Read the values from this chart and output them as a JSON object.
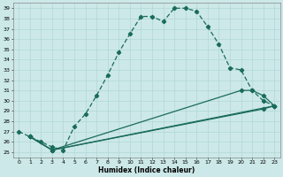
{
  "xlabel": "Humidex (Indice chaleur)",
  "xlim": [
    -0.5,
    23.5
  ],
  "ylim": [
    24.5,
    39.5
  ],
  "yticks": [
    25,
    26,
    27,
    28,
    29,
    30,
    31,
    32,
    33,
    34,
    35,
    36,
    37,
    38,
    39
  ],
  "xticks": [
    0,
    1,
    2,
    3,
    4,
    5,
    6,
    7,
    8,
    9,
    10,
    11,
    12,
    13,
    14,
    15,
    16,
    17,
    18,
    19,
    20,
    21,
    22,
    23
  ],
  "bg_color": "#cce8e8",
  "line_color": "#1a6b5a",
  "grid_color": "#aad4d4",
  "main_curve": {
    "x": [
      0,
      1,
      2,
      3,
      4,
      5,
      6,
      7,
      8,
      9,
      10,
      11,
      12,
      13,
      14,
      15,
      16,
      17,
      18,
      19,
      20,
      21,
      22,
      23
    ],
    "y": [
      27.0,
      26.5,
      26.0,
      25.5,
      25.2,
      27.5,
      28.7,
      30.5,
      32.5,
      34.7,
      36.5,
      38.2,
      38.2,
      37.7,
      39.0,
      39.0,
      38.7,
      37.2,
      35.5,
      33.2,
      33.0,
      31.0,
      30.0,
      29.5
    ]
  },
  "straight_lines": [
    {
      "x": [
        1,
        3,
        23
      ],
      "y": [
        26.5,
        25.2,
        29.5
      ]
    },
    {
      "x": [
        1,
        3,
        20,
        21,
        22,
        23
      ],
      "y": [
        26.5,
        25.2,
        31.0,
        31.0,
        30.5,
        29.5
      ]
    },
    {
      "x": [
        1,
        3,
        22,
        23
      ],
      "y": [
        26.5,
        25.2,
        29.2,
        29.5
      ]
    }
  ]
}
